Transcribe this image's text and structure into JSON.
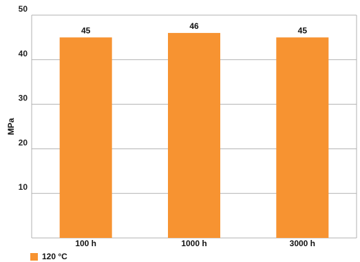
{
  "chart_data": {
    "type": "bar",
    "categories": [
      "100 h",
      "1000 h",
      "3000 h"
    ],
    "series": [
      {
        "name": "120 °C",
        "values": [
          45,
          46,
          45
        ],
        "color": "#F79331"
      }
    ],
    "ylabel": "MPa",
    "xlabel": "",
    "ylim": [
      0,
      50
    ],
    "yticks": [
      10,
      20,
      30,
      40,
      50
    ],
    "grid": true,
    "legend_position": "bottom-left"
  }
}
